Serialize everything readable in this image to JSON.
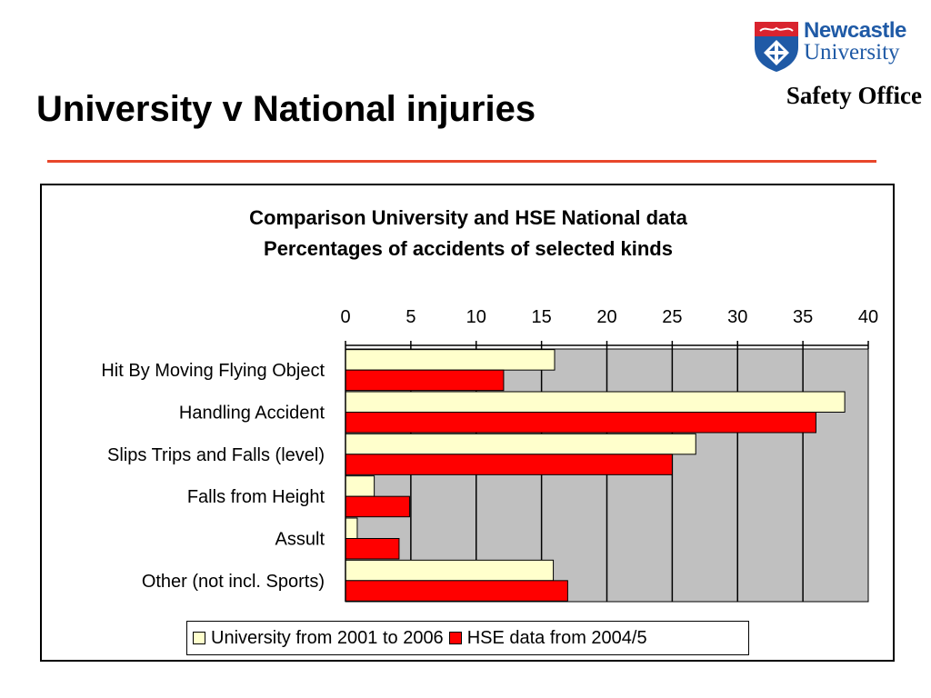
{
  "slide": {
    "title": "University v National injuries"
  },
  "branding": {
    "logo_name": "Newcastle",
    "logo_sub": "University",
    "office": "Safety Office"
  },
  "colors": {
    "accent_rule": "#e8462a",
    "university": "#ffffcc",
    "hse": "#ff0000",
    "plot_bg": "#c0c0c0",
    "brand_blue": "#1f5aa6"
  },
  "chart_data": {
    "type": "bar",
    "orientation": "horizontal",
    "title": "Comparison University and HSE National data",
    "subtitle": "Percentages of accidents of selected kinds",
    "categories": [
      "Hit By Moving Flying Object",
      "Handling Accident",
      "Slips Trips and Falls (level)",
      "Falls from Height",
      "Assult",
      "Other (not incl. Sports)"
    ],
    "series": [
      {
        "name": "University from 2001 to 2006",
        "values": [
          16,
          38.2,
          26.8,
          2.2,
          0.9,
          15.9
        ]
      },
      {
        "name": "HSE data from 2004/5",
        "values": [
          12.1,
          36,
          25,
          4.9,
          4.1,
          17
        ]
      }
    ],
    "xlim": [
      0,
      40
    ],
    "ticks": [
      "0",
      "5",
      "10",
      "15",
      "20",
      "25",
      "30",
      "35",
      "40"
    ],
    "axis_position": "top",
    "grid": true,
    "legend_position": "bottom"
  }
}
